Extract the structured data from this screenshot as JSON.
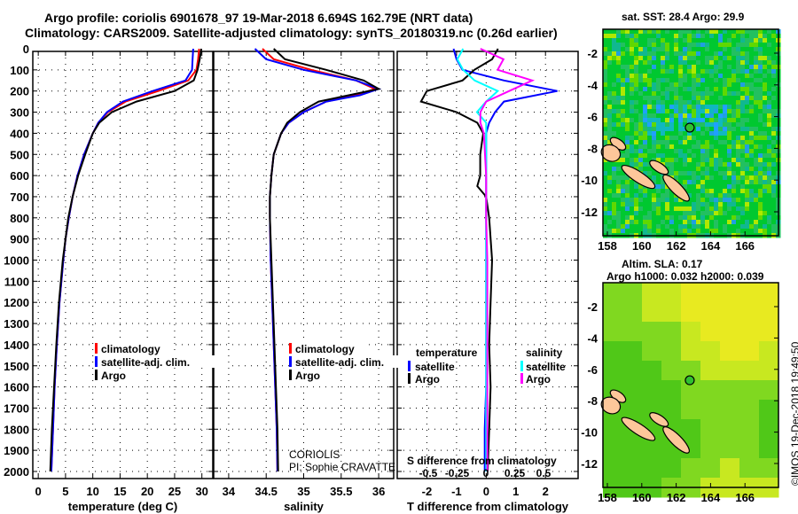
{
  "title_line1": "Argo profile: coriolis 6901678_97 19-Mar-2018 6.694S 162.79E (NRT data)",
  "title_line2": "Climatology: CARS2009. Satellite-adjusted climatology: synTS_20180319.nc (0.26d earlier)",
  "credit": "©IMOS 19-Dec-2018 19:49:50",
  "colors": {
    "climatology": "#ff0000",
    "satellite": "#0000ff",
    "argo": "#000000",
    "sal_satellite": "#00ffff",
    "sal_argo": "#ff00ff"
  },
  "chart_data": [
    {
      "type": "line",
      "name": "temperature",
      "xlabel": "temperature (deg C)",
      "xlim": [
        -1,
        32
      ],
      "ylim": [
        2050,
        0
      ],
      "yticks": [
        0,
        100,
        200,
        300,
        400,
        500,
        600,
        700,
        800,
        900,
        1000,
        1100,
        1200,
        1300,
        1400,
        1500,
        1600,
        1700,
        1800,
        1900,
        2000
      ],
      "xticks": [
        0,
        5,
        10,
        15,
        20,
        25,
        30
      ],
      "xtick_labels": [
        "0",
        "5",
        "10",
        "15",
        "20",
        "25",
        "30"
      ],
      "legend": [
        "climatology",
        "satellite-adj. clim.",
        "Argo"
      ],
      "depth": [
        0,
        50,
        100,
        150,
        200,
        250,
        300,
        350,
        400,
        500,
        600,
        700,
        800,
        900,
        1000,
        1200,
        1400,
        1600,
        1800,
        2000
      ],
      "series": [
        {
          "name": "climatology",
          "values": [
            29.5,
            29.3,
            29,
            27.5,
            22,
            16,
            12.8,
            11,
            10,
            8.4,
            7.2,
            6.3,
            5.6,
            5,
            4.6,
            3.9,
            3.4,
            3,
            2.7,
            2.4
          ]
        },
        {
          "name": "satellite-adj. clim.",
          "values": [
            28.4,
            28.3,
            28.2,
            27,
            21,
            15.5,
            12.6,
            11,
            10,
            8.4,
            7.2,
            6.3,
            5.6,
            5,
            4.6,
            3.9,
            3.4,
            3,
            2.7,
            2.4
          ]
        },
        {
          "name": "Argo",
          "values": [
            29.9,
            29.6,
            29.2,
            28.5,
            25,
            18,
            13.5,
            11.2,
            10,
            8.6,
            7.3,
            6.3,
            5.5,
            5,
            4.5,
            3.8,
            3.3,
            2.9,
            2.5,
            2.2
          ]
        }
      ]
    },
    {
      "type": "line",
      "name": "salinity",
      "xlabel": "salinity",
      "xlim": [
        33.8,
        36.2
      ],
      "ylim": [
        2050,
        0
      ],
      "xticks": [
        34,
        34.5,
        35,
        35.5,
        36
      ],
      "xtick_labels": [
        "34",
        "34.5",
        "35",
        "35.5",
        "36"
      ],
      "legend": [
        "climatology",
        "satellite-adj. clim.",
        "Argo"
      ],
      "annotation": [
        "CORIOLIS",
        "PI: Sophie CRAVATTE"
      ],
      "depth": [
        0,
        50,
        100,
        150,
        190,
        220,
        250,
        300,
        350,
        400,
        500,
        600,
        700,
        800,
        1000,
        1200,
        1400,
        1600,
        1800,
        2000
      ],
      "series": [
        {
          "name": "climatology",
          "values": [
            34.45,
            34.6,
            35.1,
            35.7,
            35.95,
            35.7,
            35.3,
            35.0,
            34.8,
            34.7,
            34.6,
            34.57,
            34.55,
            34.55,
            34.56,
            34.58,
            34.6,
            34.62,
            34.64,
            34.65
          ]
        },
        {
          "name": "satellite-adj. clim.",
          "values": [
            34.35,
            34.5,
            35.0,
            35.7,
            36.0,
            35.75,
            35.3,
            35.0,
            34.8,
            34.7,
            34.6,
            34.57,
            34.55,
            34.55,
            34.56,
            34.58,
            34.6,
            34.62,
            34.64,
            34.65
          ]
        },
        {
          "name": "Argo",
          "values": [
            34.6,
            34.75,
            35.3,
            35.8,
            36.0,
            35.6,
            35.2,
            34.95,
            34.78,
            34.7,
            34.6,
            34.57,
            34.55,
            34.55,
            34.57,
            34.59,
            34.61,
            34.63,
            34.65,
            34.66
          ]
        }
      ]
    },
    {
      "type": "line",
      "name": "difference",
      "xlabel": "T difference from climatology",
      "x2label": "S difference from climatology",
      "xlim": [
        -3,
        3.1
      ],
      "xticks": [
        -2,
        -1,
        0,
        1,
        2
      ],
      "xtick_labels": [
        "-2",
        "-1",
        "0",
        "1",
        "2"
      ],
      "x2ticks": [
        -0.5,
        -0.25,
        0,
        0.25,
        0.5
      ],
      "x2tick_labels": [
        "-0.5",
        "-0.25",
        "0",
        "0.25",
        "0.5"
      ],
      "legend_t_title": "temperature",
      "legend_s_title": "salinity",
      "legend": [
        "satellite",
        "Argo"
      ],
      "depth": [
        0,
        50,
        100,
        150,
        200,
        250,
        300,
        350,
        400,
        500,
        600,
        650,
        700,
        800,
        1000,
        1200,
        1400,
        1600,
        1800,
        2000
      ],
      "series": [
        {
          "name": "T satellite",
          "values": [
            -1.1,
            -1.0,
            -0.8,
            0.6,
            2.4,
            0.6,
            0.3,
            0.1,
            0,
            0,
            0,
            0,
            0,
            0,
            0,
            0,
            0,
            0,
            -0.05,
            -0.05
          ]
        },
        {
          "name": "T Argo",
          "values": [
            0.4,
            0.2,
            -0.4,
            -0.8,
            -2.0,
            -2.2,
            -1.0,
            -0.3,
            -0.1,
            -0.2,
            -0.2,
            -0.3,
            0.0,
            0.1,
            0.2,
            0.15,
            0.1,
            0.15,
            0.1,
            0.05
          ]
        },
        {
          "name": "S satellite",
          "values": [
            -0.2,
            -0.25,
            -0.2,
            -0.1,
            0.1,
            0.0,
            -0.08,
            0,
            0,
            0,
            0,
            0,
            0,
            0,
            0,
            0,
            0,
            0,
            0,
            0
          ]
        },
        {
          "name": "S Argo",
          "values": [
            -0.05,
            0.15,
            0.1,
            0.4,
            0.2,
            0.0,
            -0.05,
            -0.05,
            -0.02,
            -0.01,
            0,
            0,
            0,
            0,
            0.01,
            0.01,
            0.01,
            0.01,
            0.01,
            0.01
          ]
        }
      ]
    },
    {
      "type": "heatmap",
      "name": "sst-map",
      "title": "sat. SST: 28.4 Argo: 29.9",
      "xticks": [
        158,
        160,
        162,
        164,
        166
      ],
      "yticks": [
        -2,
        -4,
        -6,
        -8,
        -10,
        -12
      ],
      "argo_position": [
        162.79,
        -6.694
      ]
    },
    {
      "type": "heatmap",
      "name": "sla-map",
      "title1": "Altim. SLA: 0.17",
      "title2": "Argo h1000: 0.032 h2000: 0.039",
      "xticks": [
        158,
        160,
        162,
        164,
        166
      ],
      "yticks": [
        -2,
        -4,
        -6,
        -8,
        -10,
        -12
      ],
      "argo_position": [
        162.79,
        -6.694
      ]
    }
  ]
}
